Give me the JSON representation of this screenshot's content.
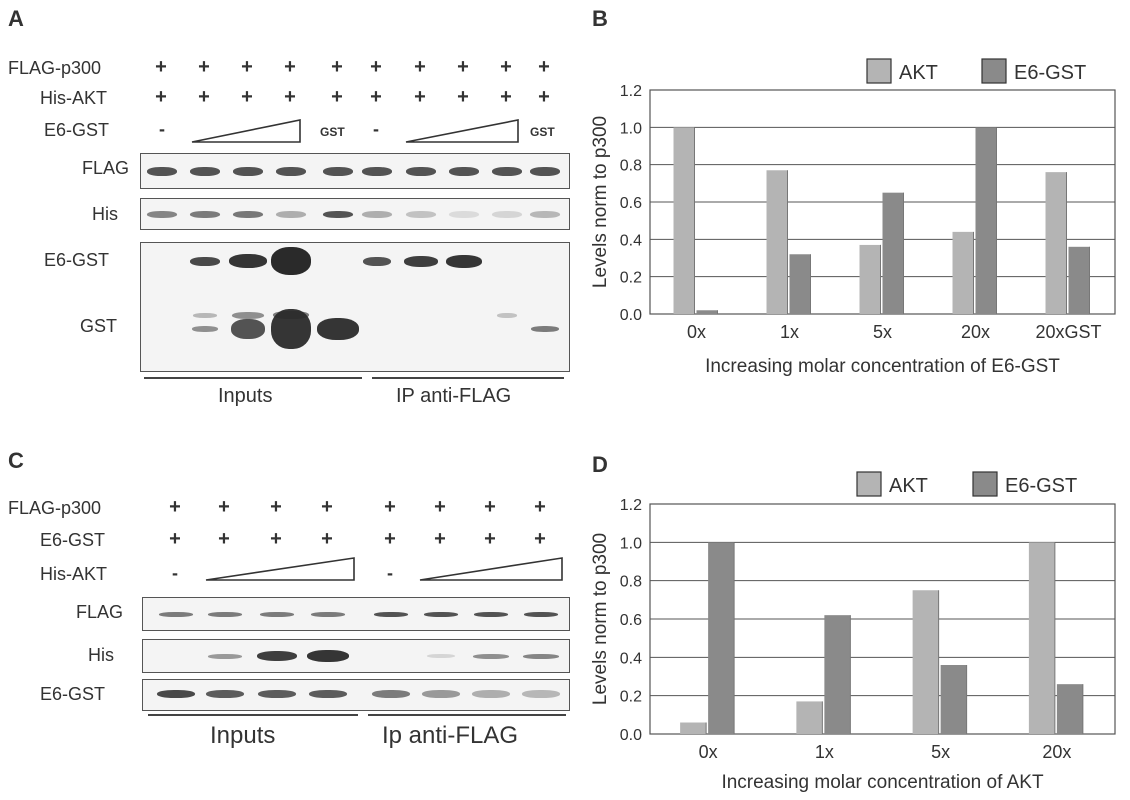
{
  "panels": {
    "A": {
      "letter": "A",
      "row_labels": [
        "FLAG-p300",
        "His-AKT",
        "E6-GST"
      ],
      "gst_label": "GST",
      "minus": "-",
      "plus": "+",
      "blot_labels": {
        "flag": "FLAG",
        "his": "His",
        "e6gst": "E6-GST",
        "gst": "GST"
      },
      "groups": {
        "inputs": "Inputs",
        "ip": "IP anti-FLAG"
      }
    },
    "C": {
      "letter": "C",
      "row_labels": [
        "FLAG-p300",
        "E6-GST",
        "His-AKT"
      ],
      "minus": "-",
      "plus": "+",
      "blot_labels": {
        "flag": "FLAG",
        "his": "His",
        "e6gst": "E6-GST"
      },
      "groups": {
        "inputs": "Inputs",
        "ip": "Ip anti-FLAG"
      }
    },
    "B": {
      "letter": "B"
    },
    "D": {
      "letter": "D"
    }
  },
  "colors": {
    "akt": "#b4b4b4",
    "e6gst": "#8a8a8a",
    "axis": "#555555",
    "band": "#2a2a2a"
  },
  "chart_data": [
    {
      "type": "bar",
      "categories": [
        "0x",
        "1x",
        "5x",
        "20x",
        "20xGST"
      ],
      "series": [
        {
          "name": "AKT",
          "values": [
            1.0,
            0.77,
            0.37,
            0.44,
            0.76
          ]
        },
        {
          "name": "E6-GST",
          "values": [
            0.02,
            0.32,
            0.65,
            1.0,
            0.36
          ]
        }
      ],
      "xlabel": "Increasing molar concentration of E6-GST",
      "ylabel": "Levels norm to p300",
      "ylim": [
        0,
        1.2
      ],
      "yticks": [
        "0.0",
        "0.2",
        "0.4",
        "0.6",
        "0.8",
        "1.0",
        "1.2"
      ],
      "grid": true,
      "legend": "top"
    },
    {
      "type": "bar",
      "categories": [
        "0x",
        "1x",
        "5x",
        "20x"
      ],
      "series": [
        {
          "name": "AKT",
          "values": [
            0.06,
            0.17,
            0.75,
            1.0
          ]
        },
        {
          "name": "E6-GST",
          "values": [
            1.0,
            0.62,
            0.36,
            0.26
          ]
        }
      ],
      "xlabel": "Increasing molar concentration of AKT",
      "ylabel": "Levels norm to p300",
      "ylim": [
        0,
        1.2
      ],
      "yticks": [
        "0.0",
        "0.2",
        "0.4",
        "0.6",
        "0.8",
        "1.0",
        "1.2"
      ],
      "grid": true,
      "legend": "top"
    }
  ]
}
